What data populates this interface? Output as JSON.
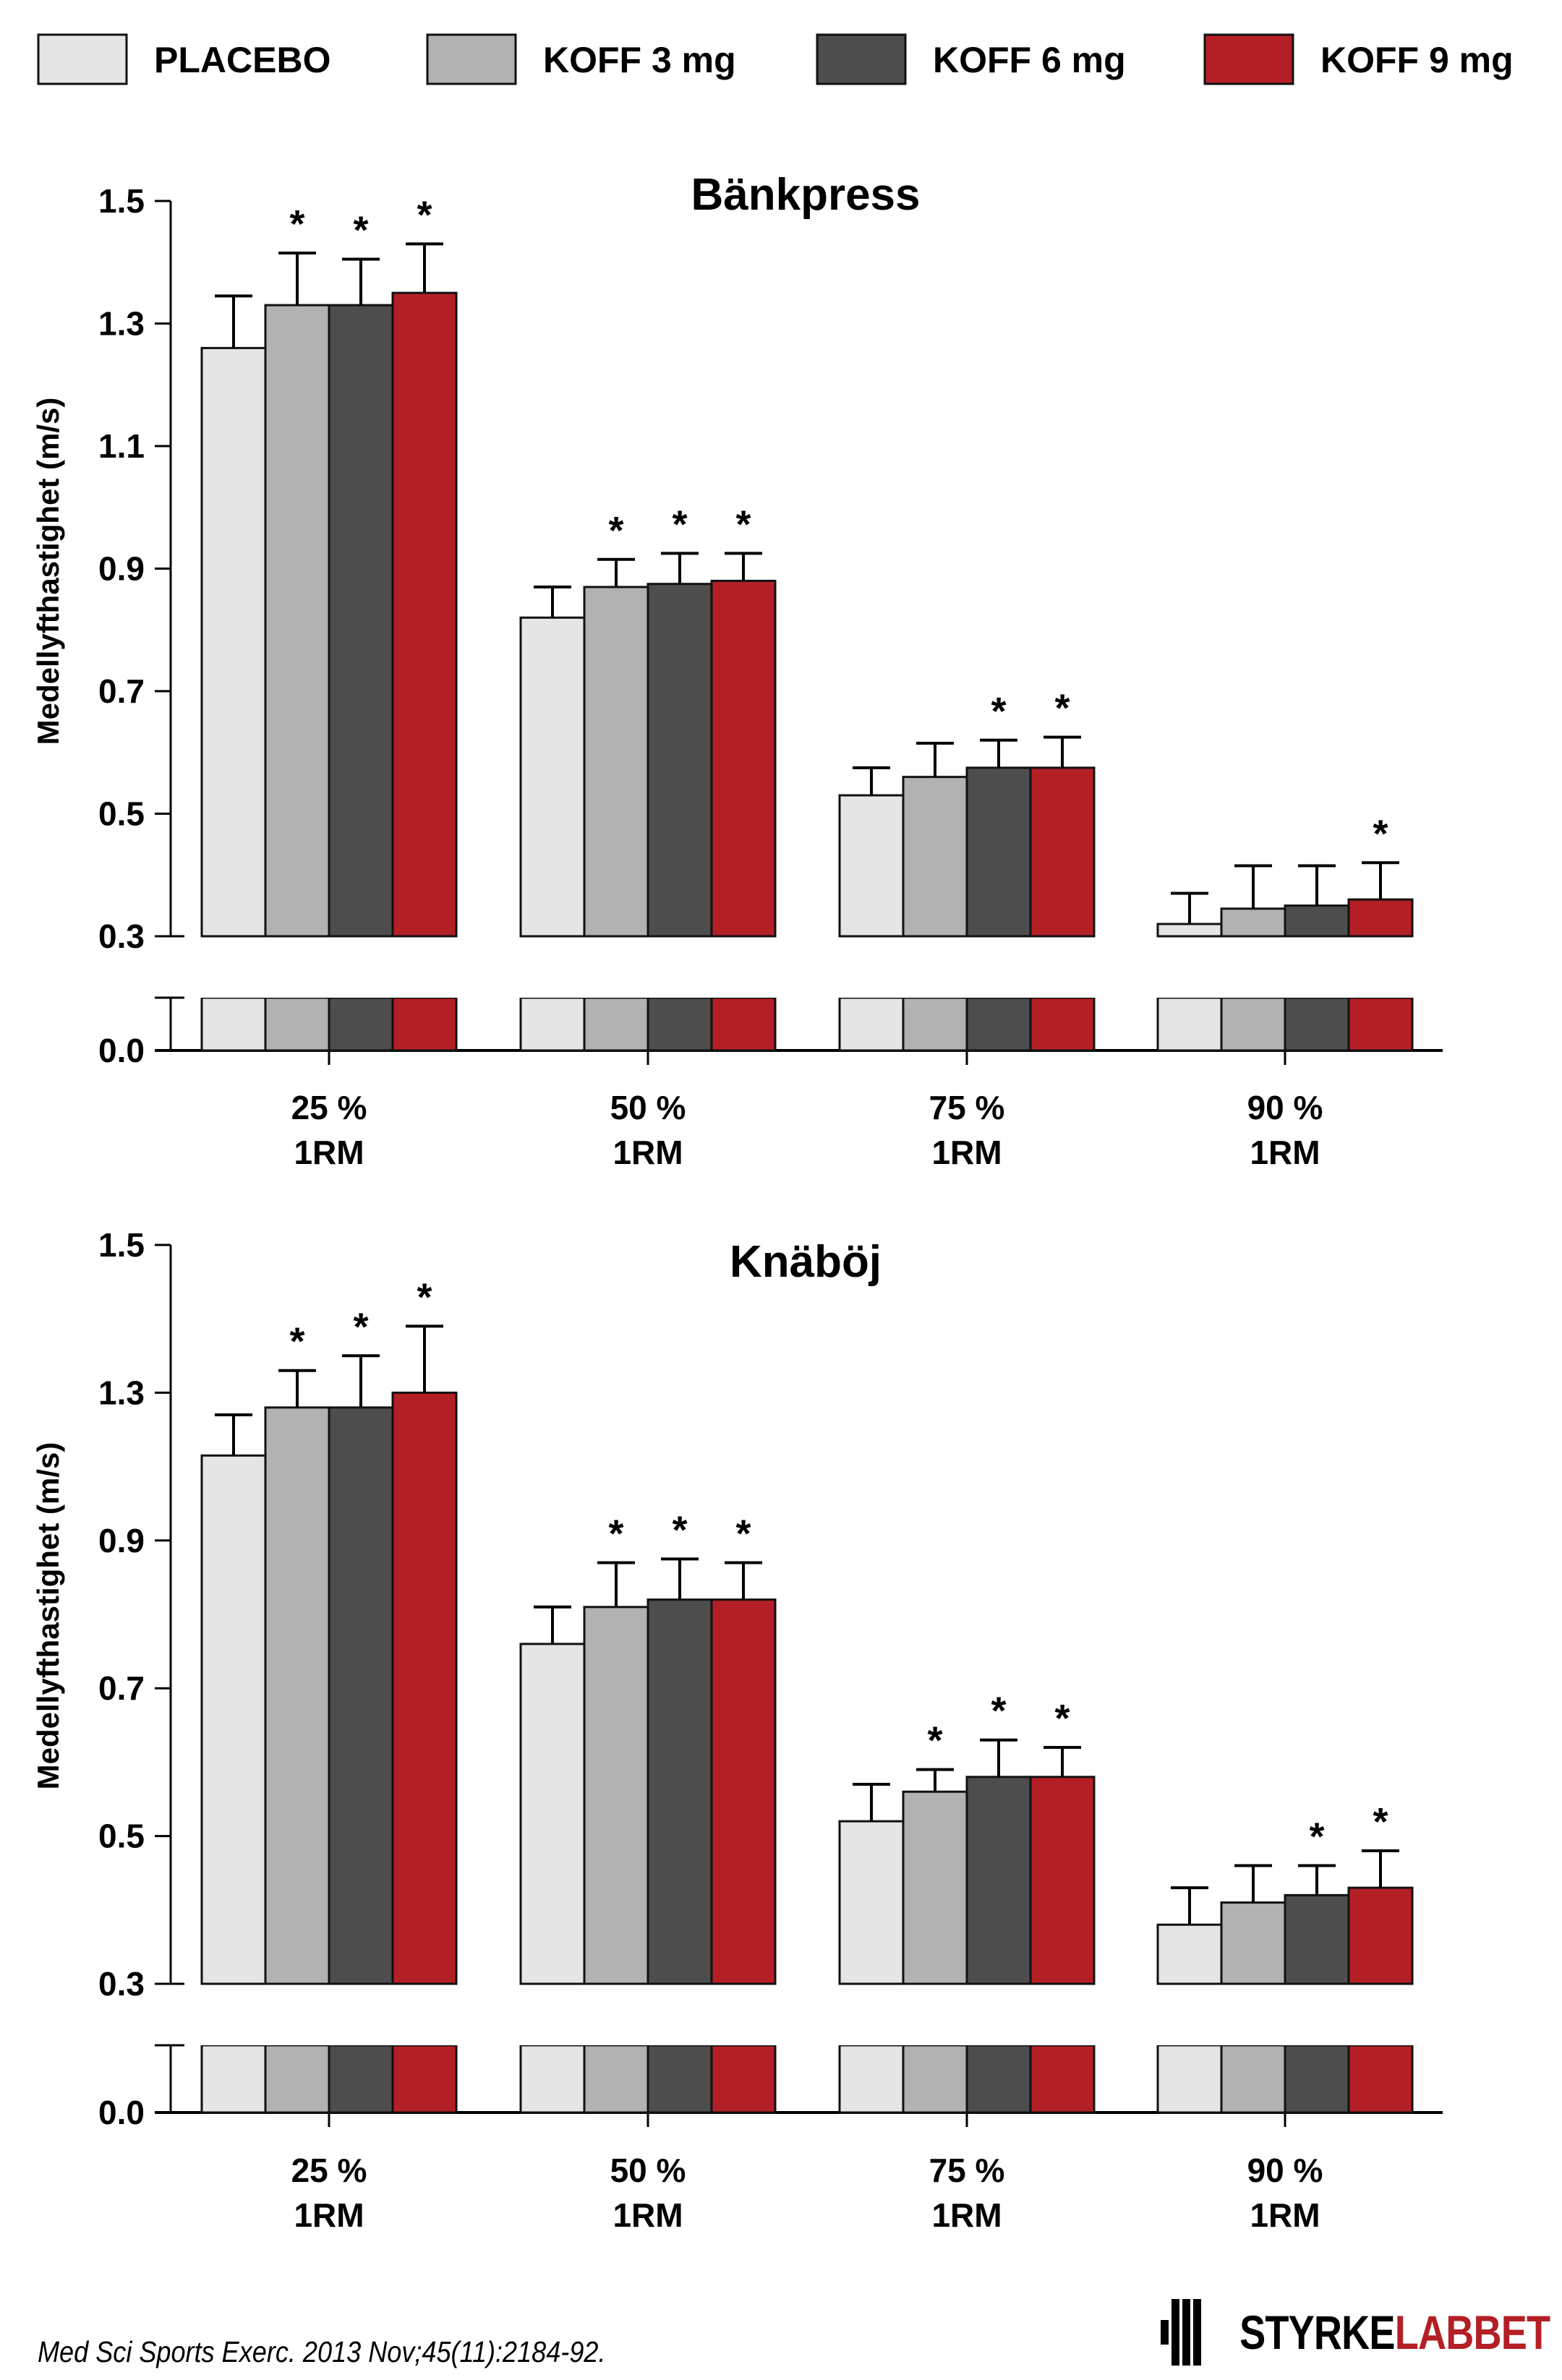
{
  "legend": [
    {
      "label": "PLACEBO",
      "color": "#e5e5e5"
    },
    {
      "label": "KOFF 3 mg",
      "color": "#b2b2b2"
    },
    {
      "label": "KOFF 6 mg",
      "color": "#4d4d4d"
    },
    {
      "label": "KOFF 9 mg",
      "color": "#b41f26"
    }
  ],
  "chart_data": [
    {
      "type": "bar",
      "title": "Bänkpress",
      "xlabel": "",
      "ylabel": "Medellyfthastighet (m/s)",
      "ylim": [
        0.0,
        1.5
      ],
      "y_axis_break": [
        0.0,
        0.3
      ],
      "yticks": [
        "1.5",
        "1.3",
        "1.1",
        "0.9",
        "0.7",
        "0.5",
        "0.3",
        "0.0"
      ],
      "categories": [
        [
          "25 %",
          "1RM"
        ],
        [
          "50 %",
          "1RM"
        ],
        [
          "75 %",
          "1RM"
        ],
        [
          "90 %",
          "1RM"
        ]
      ],
      "series": [
        {
          "name": "PLACEBO",
          "values": [
            1.26,
            0.82,
            0.53,
            0.32
          ],
          "error": [
            0.085,
            0.05,
            0.045,
            0.05
          ],
          "significant": [
            false,
            false,
            false,
            false
          ]
        },
        {
          "name": "KOFF 3 mg",
          "values": [
            1.33,
            0.87,
            0.56,
            0.345
          ],
          "error": [
            0.085,
            0.045,
            0.055,
            0.07
          ],
          "significant": [
            true,
            true,
            false,
            false
          ]
        },
        {
          "name": "KOFF 6 mg",
          "values": [
            1.33,
            0.875,
            0.575,
            0.35
          ],
          "error": [
            0.075,
            0.05,
            0.045,
            0.065
          ],
          "significant": [
            true,
            true,
            true,
            false
          ]
        },
        {
          "name": "KOFF 9 mg",
          "values": [
            1.35,
            0.88,
            0.575,
            0.36
          ],
          "error": [
            0.08,
            0.045,
            0.05,
            0.06
          ],
          "significant": [
            true,
            true,
            true,
            true
          ]
        }
      ],
      "significance_marker": "*",
      "grid": false,
      "legend_position": "top"
    },
    {
      "type": "bar",
      "title": "Knäböj",
      "xlabel": "",
      "ylabel": "Medellyfthastighet (m/s)",
      "ylim": [
        0.0,
        1.5
      ],
      "y_axis_break": [
        0.0,
        0.3
      ],
      "yticks": [
        "1.5",
        "1.3",
        "0.9",
        "0.7",
        "0.5",
        "0.3",
        "0.0"
      ],
      "categories": [
        [
          "25 %",
          "1RM"
        ],
        [
          "50 %",
          "1RM"
        ],
        [
          "75 %",
          "1RM"
        ],
        [
          "90 %",
          "1RM"
        ]
      ],
      "series": [
        {
          "name": "PLACEBO",
          "values": [
            1.13,
            0.76,
            0.52,
            0.38
          ],
          "error": [
            0.11,
            0.05,
            0.05,
            0.05
          ],
          "significant": [
            false,
            false,
            false,
            false
          ]
        },
        {
          "name": "KOFF 3 mg",
          "values": [
            1.26,
            0.81,
            0.56,
            0.41
          ],
          "error": [
            0.07,
            0.06,
            0.03,
            0.05
          ],
          "significant": [
            true,
            true,
            true,
            false
          ]
        },
        {
          "name": "KOFF 6 mg",
          "values": [
            1.26,
            0.82,
            0.58,
            0.42
          ],
          "error": [
            0.09,
            0.055,
            0.05,
            0.04
          ],
          "significant": [
            true,
            true,
            true,
            true
          ]
        },
        {
          "name": "KOFF 9 mg",
          "values": [
            1.3,
            0.82,
            0.58,
            0.43
          ],
          "error": [
            0.09,
            0.05,
            0.04,
            0.05
          ],
          "significant": [
            true,
            true,
            true,
            true
          ]
        }
      ],
      "significance_marker": "*",
      "grid": false,
      "legend_position": "top"
    }
  ],
  "footer": {
    "citation": "Med Sci Sports Exerc. 2013 Nov;45(11):2184-92.",
    "logo_left": "STYRKE",
    "logo_right": "LABBET",
    "logo_left_color": "#000000",
    "logo_right_color": "#b41f26"
  }
}
